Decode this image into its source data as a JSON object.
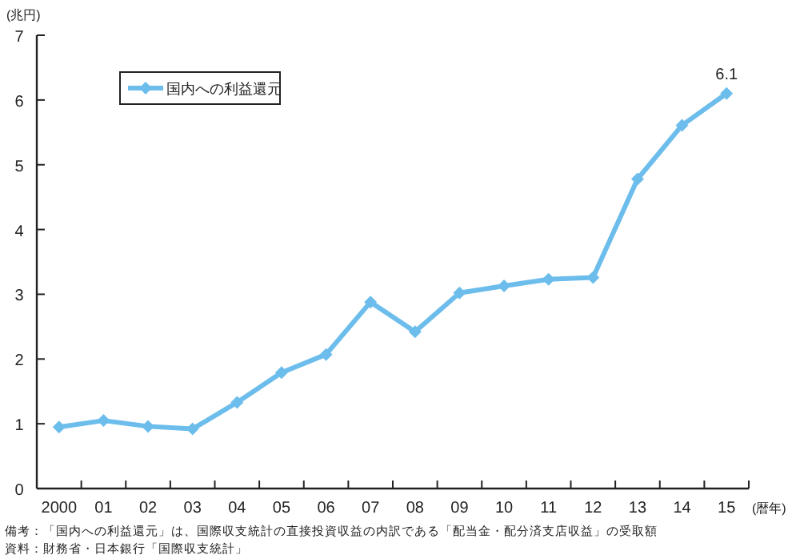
{
  "chart_data": {
    "type": "line",
    "ylabel": "(兆円)",
    "xlabel": "(暦年)",
    "categories": [
      "2000",
      "01",
      "02",
      "03",
      "04",
      "05",
      "06",
      "07",
      "08",
      "09",
      "10",
      "11",
      "12",
      "13",
      "14",
      "15"
    ],
    "series": [
      {
        "name": "国内への利益還元",
        "color": "#6cbdec",
        "values": [
          0.95,
          1.05,
          0.96,
          0.92,
          1.33,
          1.79,
          2.07,
          2.88,
          2.42,
          3.02,
          3.13,
          3.23,
          3.26,
          4.78,
          5.61,
          6.1
        ],
        "value_labels": [
          null,
          null,
          null,
          null,
          null,
          null,
          null,
          null,
          null,
          null,
          null,
          null,
          null,
          null,
          null,
          "6.1"
        ]
      }
    ],
    "ylim": [
      0,
      7
    ],
    "yticks": [
      0,
      1,
      2,
      3,
      4,
      5,
      6,
      7
    ],
    "grid": false,
    "legend": "top left",
    "marker": "diamond",
    "line_style": "solid",
    "annotations": [
      "備考：「国内への利益還元」は、国際収支統計の直接投資収益の内訳である「配当金・配分済支店収益」の受取額",
      "資料：財務省・日本銀行「国際収支統計」"
    ]
  }
}
